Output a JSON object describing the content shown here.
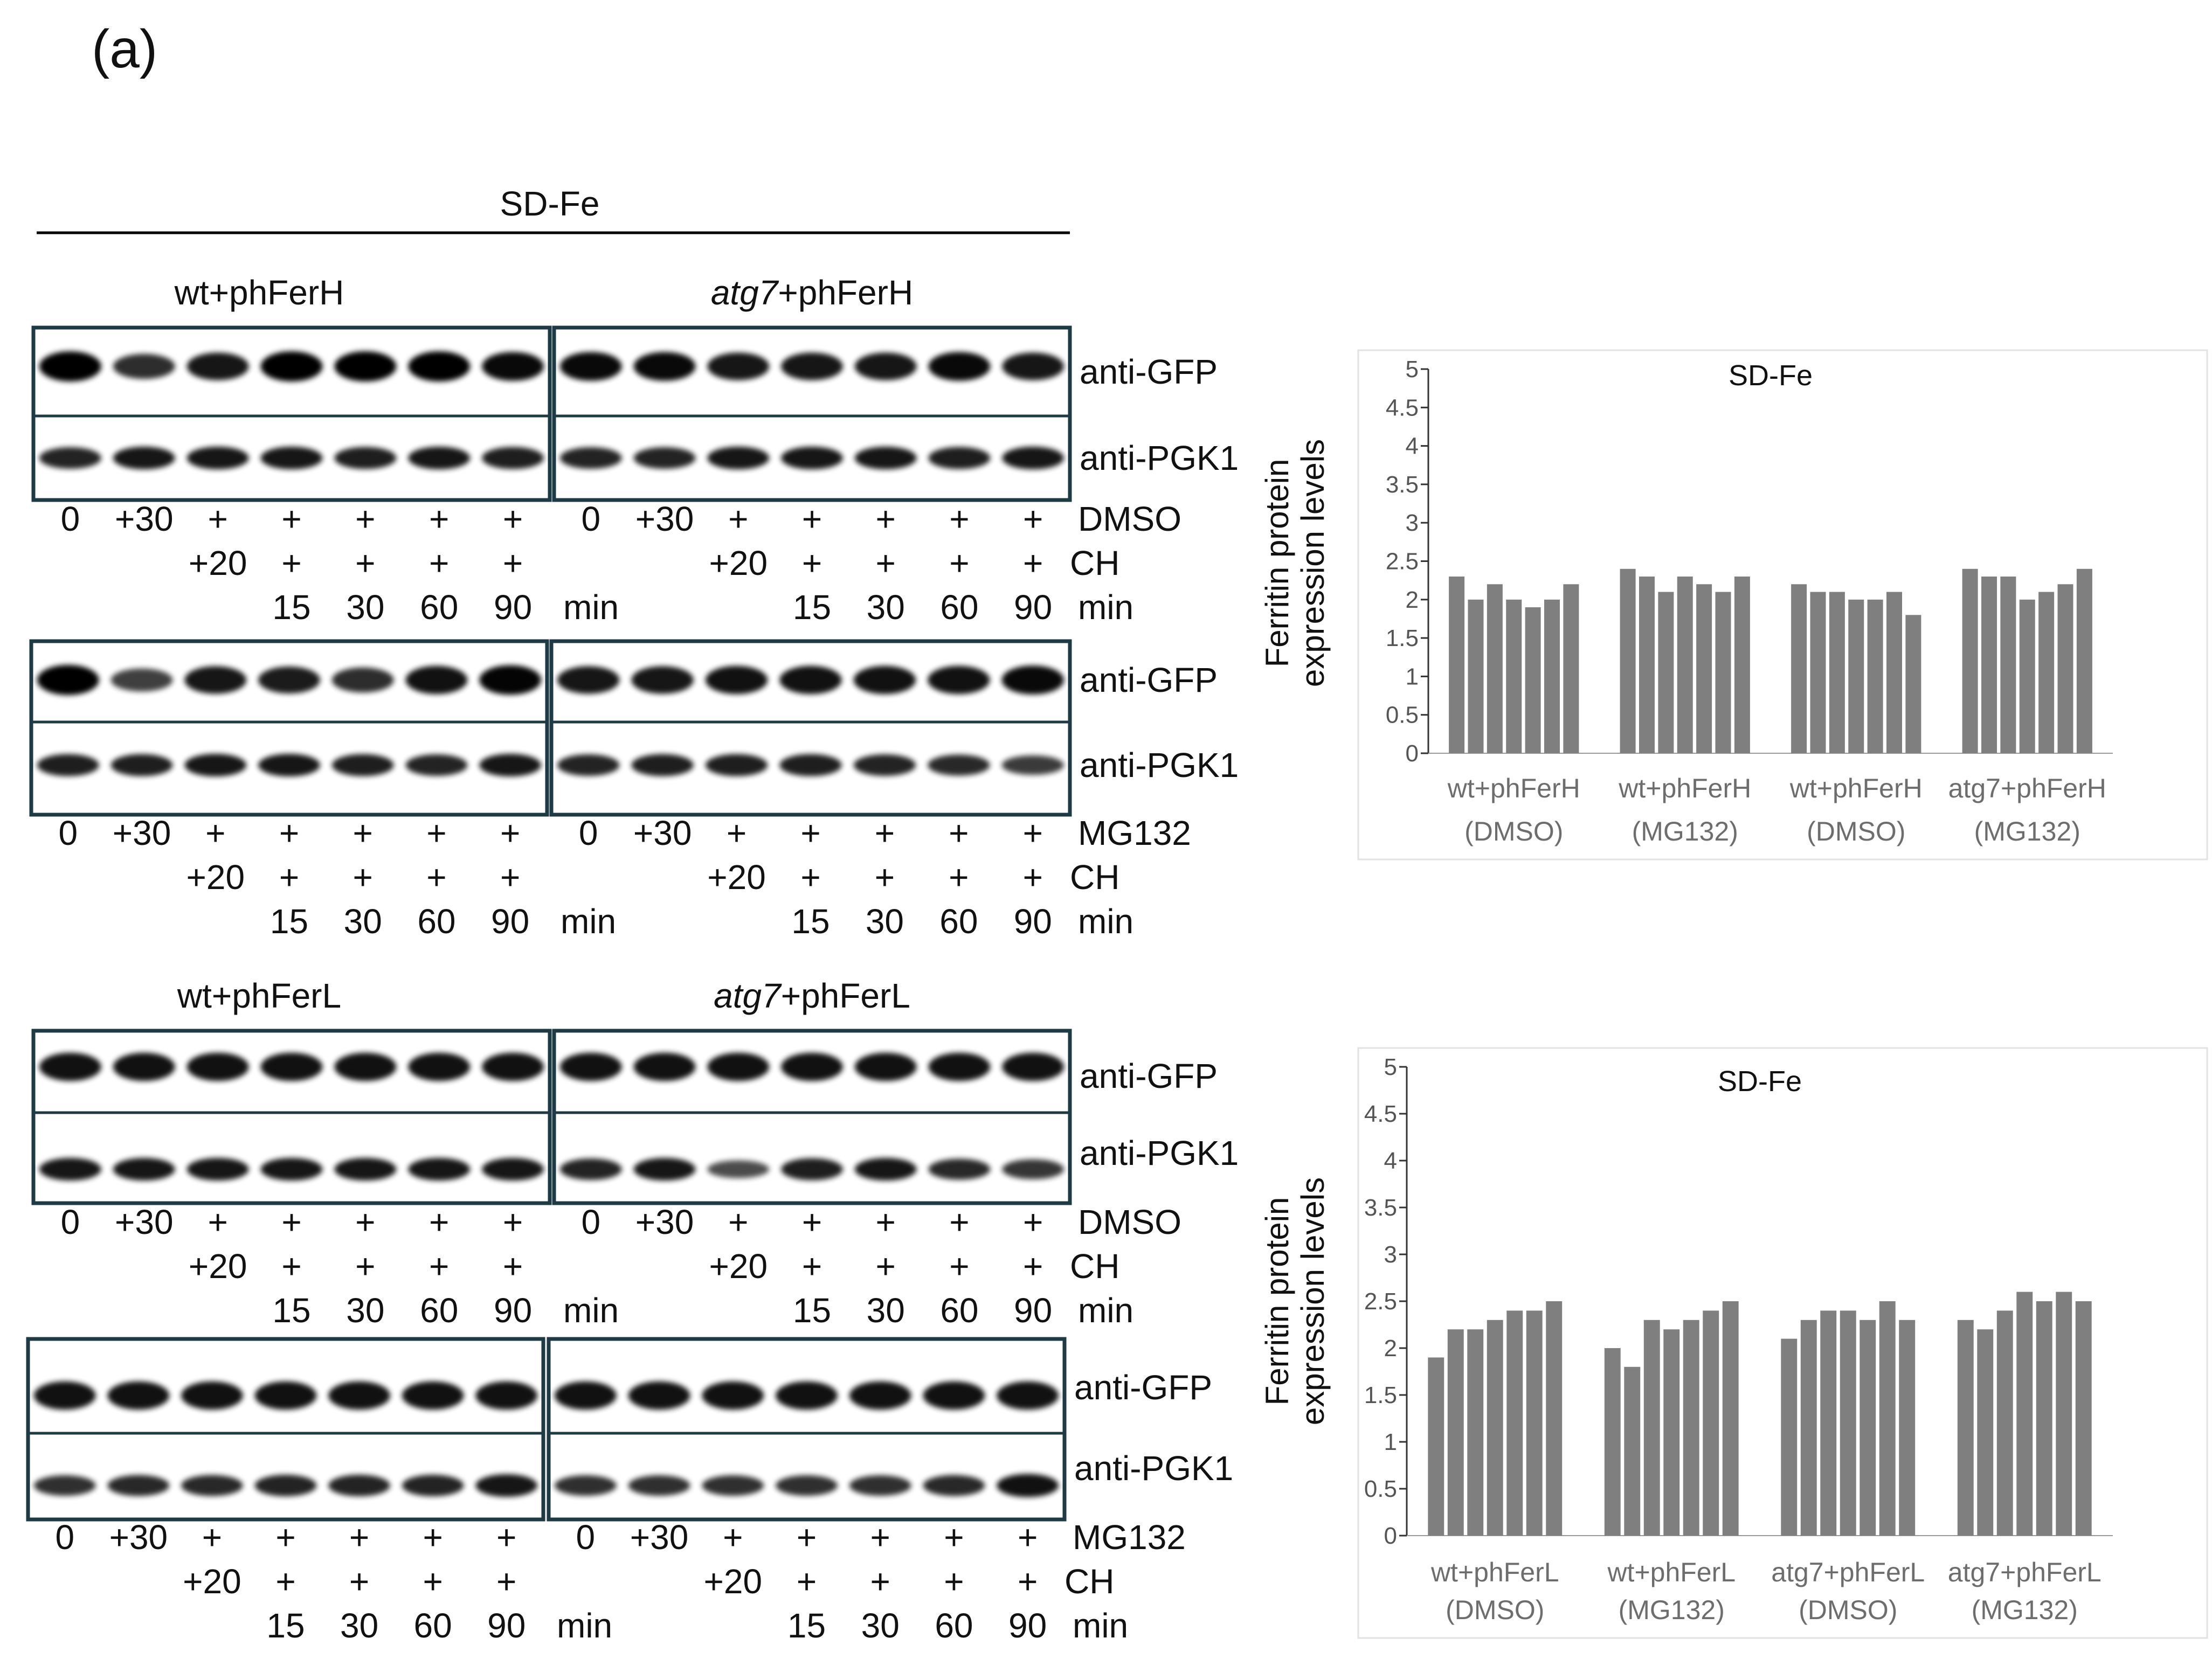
{
  "panel_label": "(a)",
  "western": {
    "condition_header": "SD-Fe",
    "strains": {
      "wt_ferH": {
        "plain": "wt+phFerH"
      },
      "atg7_ferH": {
        "ital": "atg7",
        "rest": "+phFerH"
      },
      "wt_ferL": {
        "plain": "wt+phFerL"
      },
      "atg7_ferL": {
        "ital": "atg7",
        "rest": "+phFerL"
      }
    },
    "antibodies": {
      "gfp": "anti-GFP",
      "pgk1": "anti-PGK1"
    },
    "lanes": {
      "row1": [
        "0",
        "+30",
        "+",
        "+",
        "+",
        "+",
        "+"
      ],
      "row2": [
        "",
        "",
        "+20",
        "+",
        "+",
        "+",
        "+"
      ],
      "row3": [
        "",
        "",
        "",
        "15",
        "30",
        "60",
        "90"
      ]
    },
    "treatments": {
      "dmso": "DMSO",
      "mg132": "MG132",
      "ch": "CH",
      "min": "min"
    }
  },
  "chart_data": [
    {
      "type": "bar",
      "title": "SD-Fe",
      "ylabel_lines": [
        "Ferritin protein",
        "expression levels"
      ],
      "xlabel": "",
      "ylim": [
        0,
        5
      ],
      "yticks": [
        "0",
        "0.5",
        "1",
        "1.5",
        "2",
        "2.5",
        "3",
        "3.5",
        "4",
        "4.5",
        "5"
      ],
      "bar_color": "#7f7f7f",
      "groups": [
        {
          "label_lines": [
            "wt+phFerH",
            "(DMSO)"
          ],
          "values": [
            2.3,
            2.0,
            2.2,
            2.0,
            1.9,
            2.0,
            2.2
          ]
        },
        {
          "label_lines": [
            "wt+phFerH",
            "(MG132)"
          ],
          "values": [
            2.4,
            2.3,
            2.1,
            2.3,
            2.2,
            2.1,
            2.3
          ]
        },
        {
          "label_lines": [
            "wt+phFerH",
            "(DMSO)"
          ],
          "values": [
            2.2,
            2.1,
            2.1,
            2.0,
            2.0,
            2.1,
            1.8
          ]
        },
        {
          "label_lines": [
            "atg7+phFerH",
            "(MG132)"
          ],
          "values": [
            2.4,
            2.3,
            2.3,
            2.0,
            2.1,
            2.2,
            2.4
          ]
        }
      ]
    },
    {
      "type": "bar",
      "title": "SD-Fe",
      "ylabel_lines": [
        "Ferritin protein",
        "expression levels"
      ],
      "xlabel": "",
      "ylim": [
        0,
        5
      ],
      "yticks": [
        "0",
        "0.5",
        "1",
        "1.5",
        "2",
        "2.5",
        "3",
        "3.5",
        "4",
        "4.5",
        "5"
      ],
      "bar_color": "#7f7f7f",
      "groups": [
        {
          "label_lines": [
            "wt+phFerL",
            "(DMSO)"
          ],
          "values": [
            1.9,
            2.2,
            2.2,
            2.3,
            2.4,
            2.4,
            2.5
          ]
        },
        {
          "label_lines": [
            "wt+phFerL",
            "(MG132)"
          ],
          "values": [
            2.0,
            1.8,
            2.3,
            2.2,
            2.3,
            2.4,
            2.5
          ]
        },
        {
          "label_lines": [
            "atg7+phFerL",
            "(DMSO)"
          ],
          "values": [
            2.1,
            2.3,
            2.4,
            2.4,
            2.3,
            2.5,
            2.3
          ]
        },
        {
          "label_lines": [
            "atg7+phFerL",
            "(MG132)"
          ],
          "values": [
            2.3,
            2.2,
            2.4,
            2.6,
            2.5,
            2.6,
            2.5
          ]
        }
      ]
    }
  ]
}
